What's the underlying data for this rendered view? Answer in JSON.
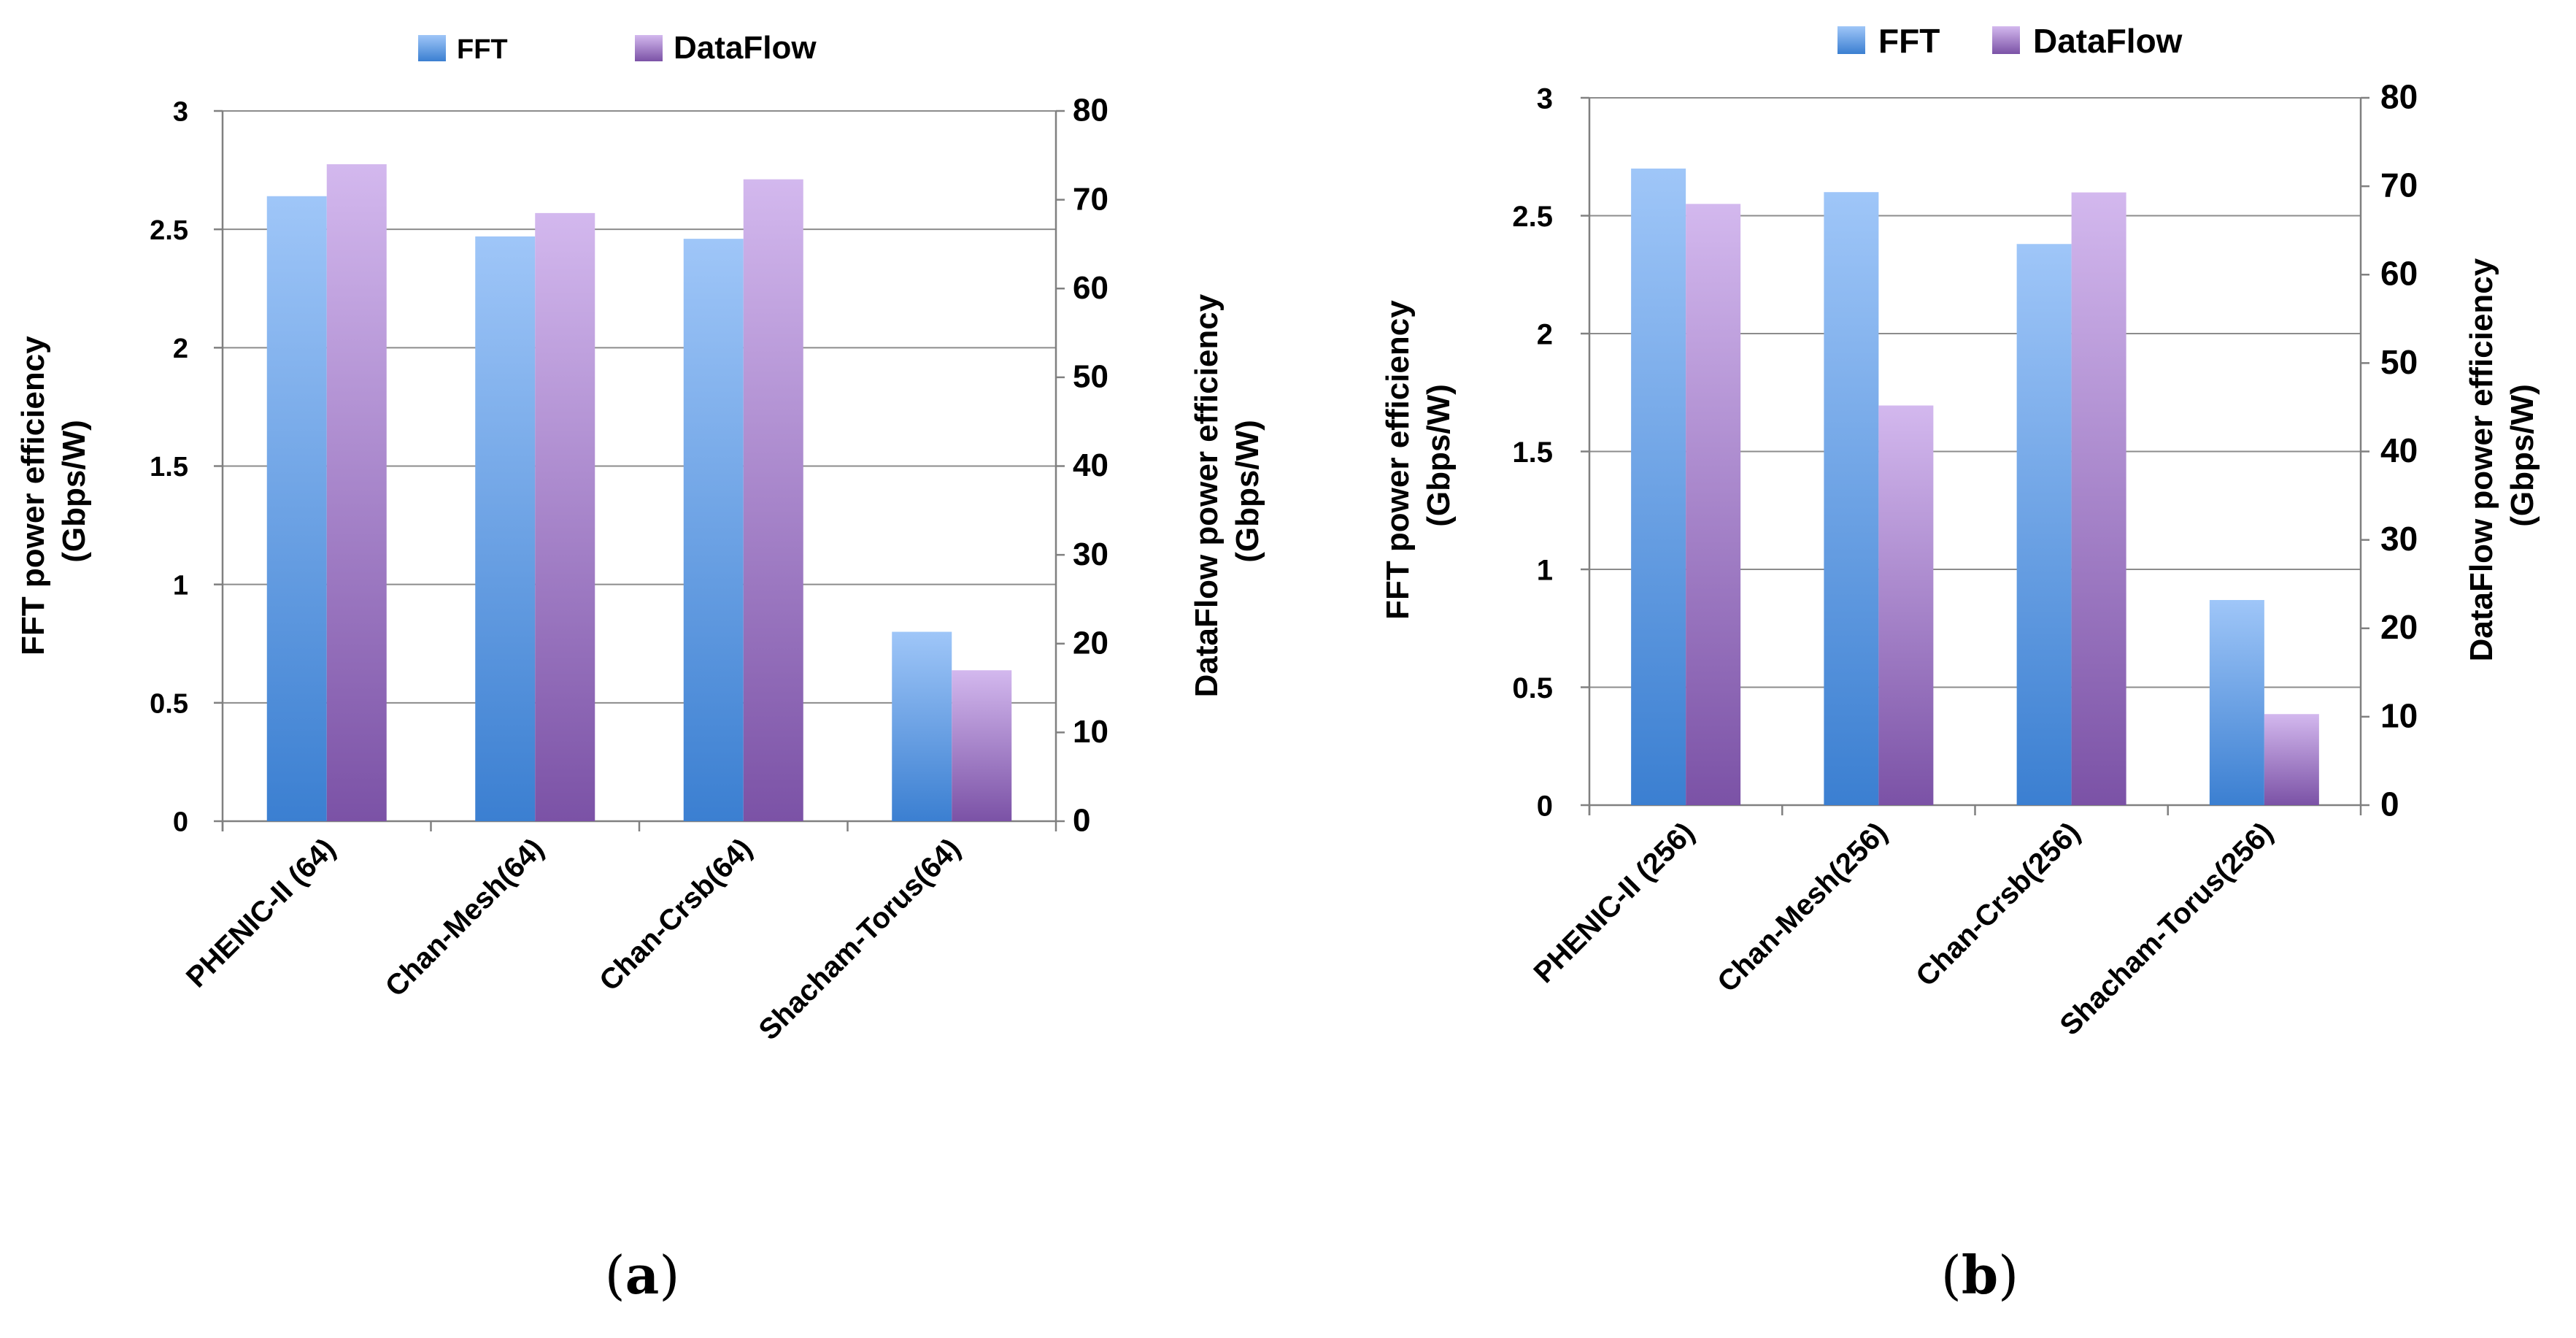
{
  "chart_data": [
    {
      "type": "bar",
      "panel_label": "a",
      "categories": [
        "PHENIC-II  (64)",
        "Chan-Mesh(64)",
        "Chan-Crsb(64)",
        "Shacham-Torus(64)"
      ],
      "series": [
        {
          "name": "FFT",
          "axis": "left",
          "values": [
            2.64,
            2.47,
            2.46,
            0.8
          ]
        },
        {
          "name": "DataFlow",
          "axis": "right",
          "values": [
            74,
            68.5,
            72.3,
            17
          ]
        }
      ],
      "ylabel_left": [
        "FFT power efficiency",
        "(Gbps/W)"
      ],
      "ylabel_right": [
        "DataFlow power efficiency",
        "(Gbps/W)"
      ],
      "ylim_left": [
        0,
        3
      ],
      "yticks_left": [
        0,
        0.5,
        1,
        1.5,
        2,
        2.5,
        3
      ],
      "ylim_right": [
        0,
        80
      ],
      "yticks_right": [
        0,
        10,
        20,
        30,
        40,
        50,
        60,
        70,
        80
      ],
      "legend": [
        "FFT",
        "DataFlow"
      ],
      "legend_position": "top",
      "grid": true
    },
    {
      "type": "bar",
      "panel_label": "b",
      "categories": [
        "PHENIC-II  (256)",
        "Chan-Mesh(256)",
        "Chan-Crsb(256)",
        "Shacham-Torus(256)"
      ],
      "series": [
        {
          "name": "FFT",
          "axis": "left",
          "values": [
            2.7,
            2.6,
            2.38,
            0.87
          ]
        },
        {
          "name": "DataFlow",
          "axis": "right",
          "values": [
            68,
            45.2,
            69.3,
            10.3
          ]
        }
      ],
      "ylabel_left": [
        "FFT power efficiency",
        "(Gbps/W)"
      ],
      "ylabel_right": [
        "DataFlow power efficiency",
        "(Gbps/W)"
      ],
      "ylim_left": [
        0,
        3
      ],
      "yticks_left": [
        0,
        0.5,
        1,
        1.5,
        2,
        2.5,
        3
      ],
      "ylim_right": [
        0,
        80
      ],
      "yticks_right": [
        0,
        10,
        20,
        30,
        40,
        50,
        60,
        70,
        80
      ],
      "legend": [
        "FFT",
        "DataFlow"
      ],
      "legend_position": "top",
      "grid": true
    }
  ],
  "colors": {
    "fft_top": "#9fc6f8",
    "fft_bottom": "#3b7fd1",
    "dataflow_top": "#d3b8ee",
    "dataflow_bottom": "#7b52a6",
    "grid": "#8c8c8c",
    "axis": "#808080"
  }
}
